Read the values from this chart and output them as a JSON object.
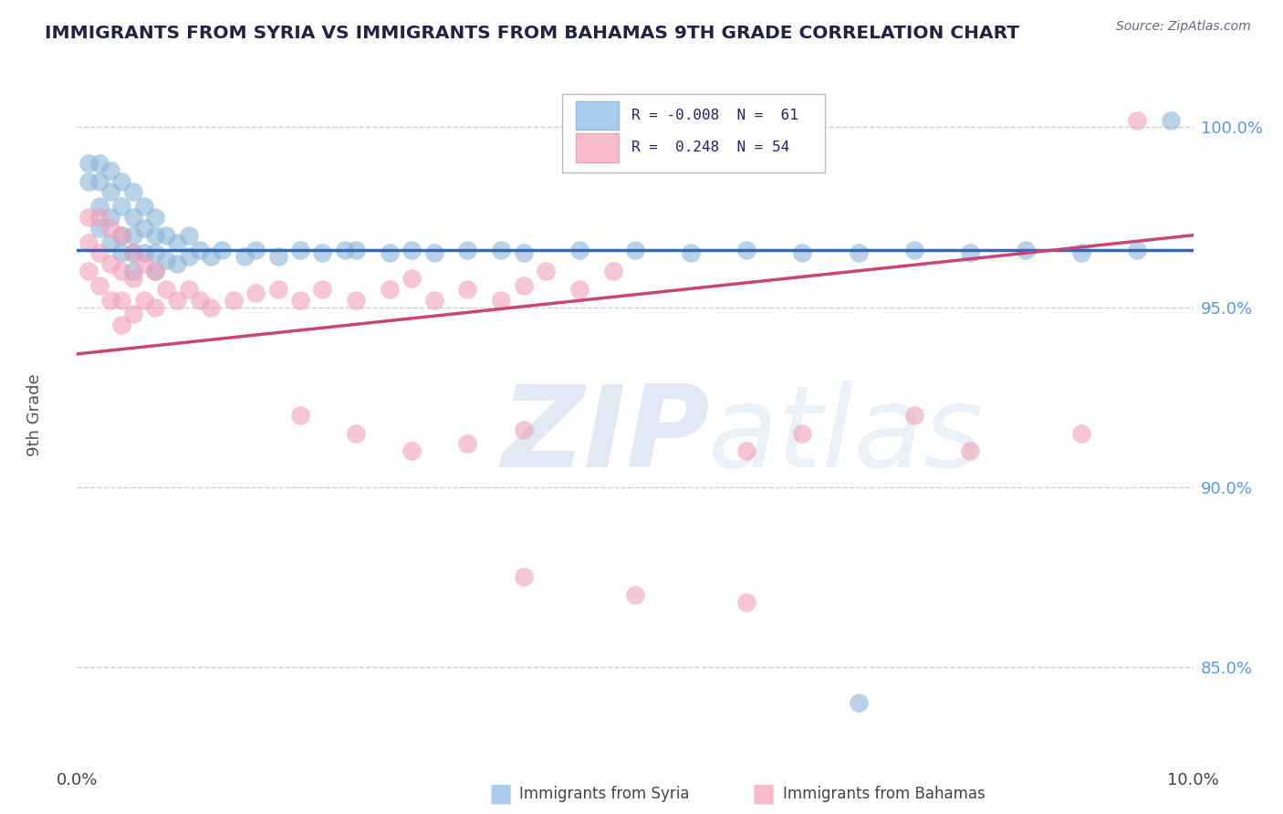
{
  "title": "IMMIGRANTS FROM SYRIA VS IMMIGRANTS FROM BAHAMAS 9TH GRADE CORRELATION CHART",
  "source_text": "Source: ZipAtlas.com",
  "ylabel": "9th Grade",
  "xlim": [
    0.0,
    0.1
  ],
  "ylim": [
    0.825,
    1.015
  ],
  "color_syria": "#8AB4D8",
  "color_bahamas": "#F0A0B8",
  "color_line_syria": "#3366CC",
  "color_line_bahamas": "#CC4477",
  "legend_face_syria": "#AACCEE",
  "legend_face_bahamas": "#F8BBCC",
  "background_color": "#FFFFFF",
  "title_color": "#222244",
  "source_color": "#666688",
  "watermark_zip": "ZIP",
  "watermark_atlas": "atlas",
  "grid_color": "#CCCCCC",
  "right_tick_color": "#5599EE",
  "syria_x": [
    0.001,
    0.001,
    0.002,
    0.002,
    0.002,
    0.002,
    0.003,
    0.003,
    0.003,
    0.003,
    0.004,
    0.004,
    0.004,
    0.004,
    0.005,
    0.005,
    0.005,
    0.005,
    0.005,
    0.006,
    0.006,
    0.006,
    0.007,
    0.007,
    0.007,
    0.007,
    0.008,
    0.008,
    0.009,
    0.009,
    0.01,
    0.01,
    0.011,
    0.012,
    0.013,
    0.015,
    0.016,
    0.018,
    0.02,
    0.022,
    0.024,
    0.025,
    0.028,
    0.03,
    0.032,
    0.035,
    0.038,
    0.04,
    0.045,
    0.05,
    0.055,
    0.06,
    0.065,
    0.07,
    0.075,
    0.08,
    0.085,
    0.09,
    0.095,
    0.098,
    0.07
  ],
  "syria_y": [
    0.99,
    0.985,
    0.99,
    0.985,
    0.978,
    0.972,
    0.988,
    0.982,
    0.975,
    0.968,
    0.985,
    0.978,
    0.97,
    0.965,
    0.982,
    0.975,
    0.97,
    0.965,
    0.96,
    0.978,
    0.972,
    0.965,
    0.975,
    0.97,
    0.965,
    0.96,
    0.97,
    0.963,
    0.968,
    0.962,
    0.97,
    0.964,
    0.966,
    0.964,
    0.966,
    0.964,
    0.966,
    0.964,
    0.966,
    0.965,
    0.966,
    0.966,
    0.965,
    0.966,
    0.965,
    0.966,
    0.966,
    0.965,
    0.966,
    0.966,
    0.965,
    0.966,
    0.965,
    0.965,
    0.966,
    0.965,
    0.966,
    0.965,
    0.966,
    1.002,
    0.84
  ],
  "bahamas_x": [
    0.001,
    0.001,
    0.001,
    0.002,
    0.002,
    0.002,
    0.003,
    0.003,
    0.003,
    0.004,
    0.004,
    0.004,
    0.004,
    0.005,
    0.005,
    0.005,
    0.006,
    0.006,
    0.007,
    0.007,
    0.008,
    0.009,
    0.01,
    0.011,
    0.012,
    0.014,
    0.016,
    0.018,
    0.02,
    0.022,
    0.025,
    0.028,
    0.03,
    0.032,
    0.035,
    0.038,
    0.04,
    0.042,
    0.045,
    0.048,
    0.02,
    0.025,
    0.03,
    0.035,
    0.04,
    0.06,
    0.065,
    0.075,
    0.08,
    0.09,
    0.04,
    0.05,
    0.06,
    0.095
  ],
  "bahamas_y": [
    0.975,
    0.968,
    0.96,
    0.975,
    0.965,
    0.956,
    0.972,
    0.962,
    0.952,
    0.97,
    0.96,
    0.952,
    0.945,
    0.965,
    0.958,
    0.948,
    0.962,
    0.952,
    0.96,
    0.95,
    0.955,
    0.952,
    0.955,
    0.952,
    0.95,
    0.952,
    0.954,
    0.955,
    0.952,
    0.955,
    0.952,
    0.955,
    0.958,
    0.952,
    0.955,
    0.952,
    0.956,
    0.96,
    0.955,
    0.96,
    0.92,
    0.915,
    0.91,
    0.912,
    0.916,
    0.91,
    0.915,
    0.92,
    0.91,
    0.915,
    0.875,
    0.87,
    0.868,
    1.002
  ]
}
